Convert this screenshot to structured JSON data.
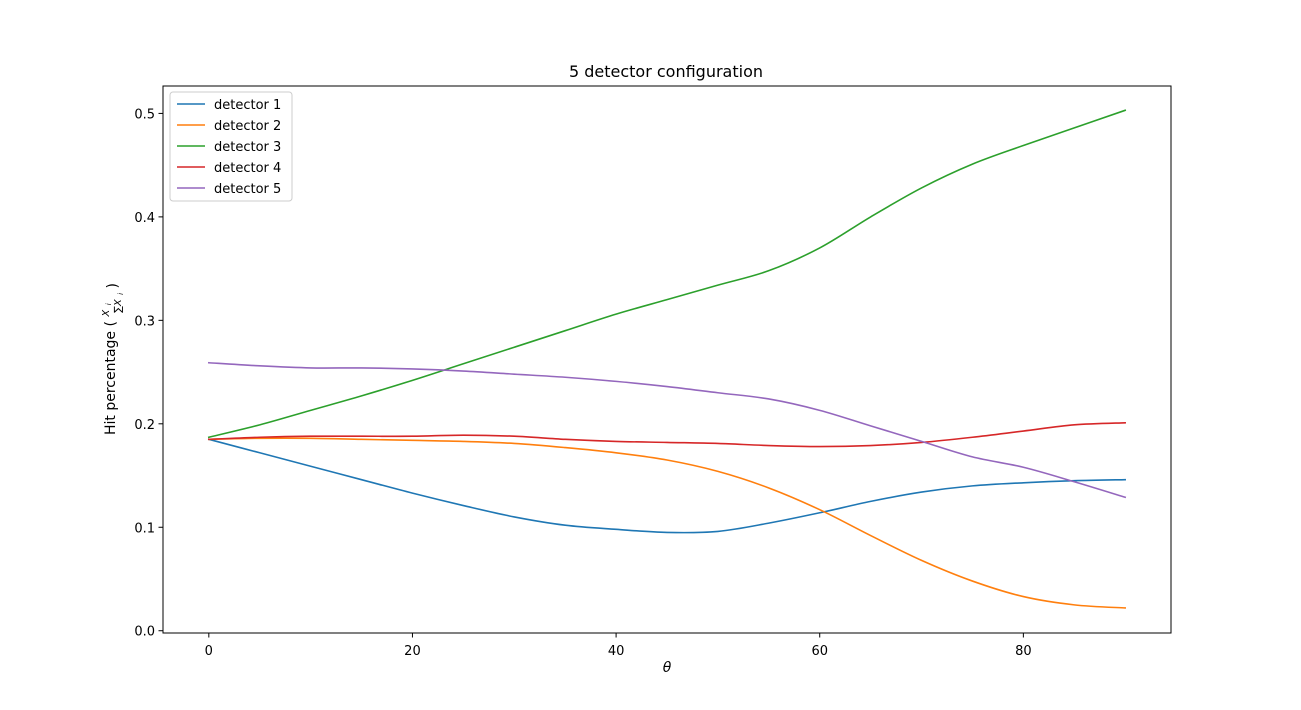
{
  "chart_data": {
    "type": "line",
    "title": "5 detector configuration",
    "xlabel": "θ",
    "ylabel_prefix": "Hit percentage (",
    "ylabel_frac_num": "X",
    "ylabel_frac_num_sub": "i",
    "ylabel_frac_den": "∑X",
    "ylabel_frac_den_sub": "i",
    "ylabel_suffix": ")",
    "xlim": [
      -4.5,
      94.5
    ],
    "ylim": [
      -0.0022,
      0.5265
    ],
    "xticks": [
      0,
      20,
      40,
      60,
      80
    ],
    "xtick_labels": [
      "0",
      "20",
      "40",
      "60",
      "80"
    ],
    "yticks": [
      0.0,
      0.1,
      0.2,
      0.3,
      0.4,
      0.5
    ],
    "ytick_labels": [
      "0.0",
      "0.1",
      "0.2",
      "0.3",
      "0.4",
      "0.5"
    ],
    "grid": false,
    "legend_position": "upper-left",
    "x": [
      0,
      5,
      10,
      15,
      20,
      25,
      30,
      35,
      40,
      45,
      50,
      55,
      60,
      65,
      70,
      75,
      80,
      85,
      90
    ],
    "series": [
      {
        "name": "detector 1",
        "color": "#1f77b4",
        "values": [
          0.185,
          0.172,
          0.159,
          0.146,
          0.133,
          0.121,
          0.11,
          0.102,
          0.098,
          0.095,
          0.096,
          0.104,
          0.114,
          0.125,
          0.134,
          0.14,
          0.143,
          0.145,
          0.146
        ]
      },
      {
        "name": "detector 2",
        "color": "#ff7f0e",
        "values": [
          0.185,
          0.186,
          0.186,
          0.185,
          0.184,
          0.183,
          0.181,
          0.177,
          0.172,
          0.165,
          0.154,
          0.138,
          0.117,
          0.092,
          0.068,
          0.048,
          0.033,
          0.025,
          0.022
        ]
      },
      {
        "name": "detector 3",
        "color": "#2ca02c",
        "values": [
          0.187,
          0.199,
          0.213,
          0.227,
          0.242,
          0.258,
          0.274,
          0.29,
          0.306,
          0.32,
          0.334,
          0.348,
          0.37,
          0.4,
          0.428,
          0.451,
          0.469,
          0.486,
          0.503
        ]
      },
      {
        "name": "detector 4",
        "color": "#d62728",
        "values": [
          0.185,
          0.187,
          0.188,
          0.188,
          0.188,
          0.189,
          0.188,
          0.185,
          0.183,
          0.182,
          0.181,
          0.179,
          0.178,
          0.179,
          0.182,
          0.187,
          0.193,
          0.199,
          0.201
        ]
      },
      {
        "name": "detector 5",
        "color": "#9467bd",
        "values": [
          0.259,
          0.256,
          0.254,
          0.254,
          0.253,
          0.251,
          0.248,
          0.245,
          0.241,
          0.236,
          0.23,
          0.224,
          0.213,
          0.198,
          0.183,
          0.168,
          0.158,
          0.144,
          0.129
        ]
      }
    ]
  }
}
